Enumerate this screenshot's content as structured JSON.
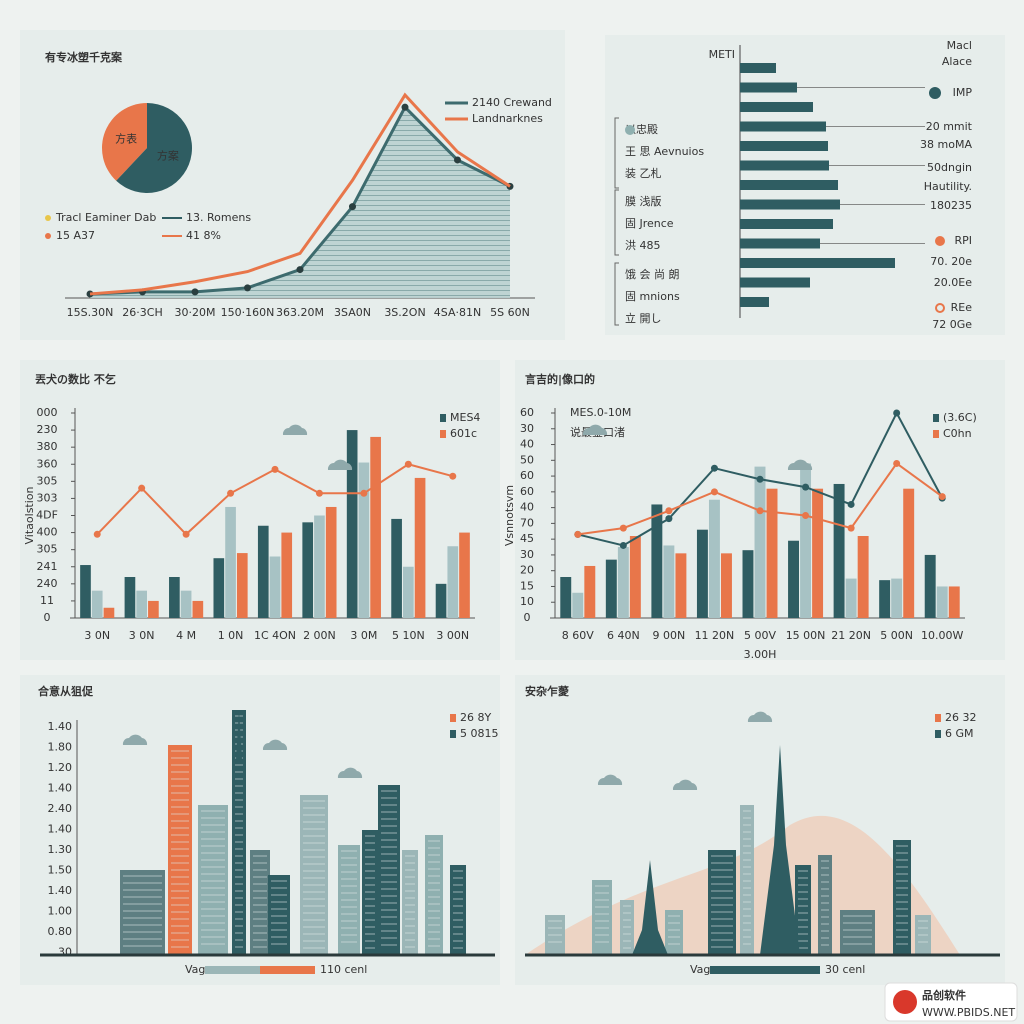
{
  "chart_data": [
    {
      "type": "area",
      "title": "有专冰塑千克案",
      "categories": [
        "15S.30N",
        "26·3CH",
        "30·20M",
        "150·160N",
        "363.20M",
        "3SA0N",
        "3S.2ON",
        "4SA·81N",
        "5S 60N"
      ],
      "ylim": [
        0,
        100
      ],
      "series": [
        {
          "name": "2140 Crewand",
          "color": "#3d6b6e",
          "values": [
            2,
            3,
            3,
            5,
            14,
            45,
            94,
            68,
            55
          ]
        },
        {
          "name": "Landnarknes",
          "color": "#e8764a",
          "values": [
            2,
            4,
            8,
            13,
            22,
            58,
            100,
            72,
            55
          ]
        }
      ]
    },
    {
      "type": "pie",
      "categories": [
        "方表",
        "方案"
      ],
      "values": [
        38,
        62
      ],
      "colors": [
        "#e8764a",
        "#2f5d62"
      ],
      "notes": [
        "Tracl Eaminer Dab",
        "13. Romens",
        "15 A37",
        "41 8%"
      ]
    },
    {
      "type": "barh",
      "title": "METI",
      "color": "#2f5d62",
      "xlim": [
        0,
        160
      ],
      "values": [
        36,
        57,
        73,
        86,
        88,
        89,
        98,
        100,
        93,
        80,
        155,
        70,
        29
      ],
      "right_labels": [
        "Macl",
        "Alace",
        "IMP",
        "20 mmit",
        "38 moMA",
        "50dngin",
        "Hautility.",
        "180235",
        "RPI",
        "70. 20e",
        "20.0Ee",
        "REe",
        "72 0Ge"
      ],
      "left_labels": [
        [
          "以忠殿",
          "王 思 Aevnuios",
          "装 乙札"
        ],
        [
          "膜 浅版",
          "固 Jrence",
          "洪 485"
        ],
        [
          "饿 会 尚 朗",
          "固 mnions",
          "立 開し"
        ]
      ]
    },
    {
      "type": "combo",
      "title": "丟犬の数比 不乞",
      "ylabel": "Vitaolstion",
      "categories": [
        "3 0N",
        "3 0N",
        "4 M",
        "1 0N",
        "1C 4ON",
        "2 00N",
        "3 0M",
        "5 10N",
        "3 00N"
      ],
      "ylim": [
        0,
        12
      ],
      "yticks": [
        0,
        {
          "value": 1,
          "label": "11"
        },
        {
          "value": 2,
          "label": "240"
        },
        {
          "value": 3,
          "label": "241"
        },
        {
          "value": 4,
          "label": "305"
        },
        {
          "value": 5,
          "label": "400"
        },
        {
          "value": 6,
          "label": "4DF"
        },
        {
          "value": 7,
          "label": "303"
        },
        {
          "value": 8,
          "label": "305"
        },
        {
          "value": 9,
          "label": "360"
        },
        {
          "value": 10,
          "label": "380"
        },
        {
          "value": 11,
          "label": "230"
        },
        {
          "value": 12,
          "label": "000"
        }
      ],
      "series": [
        {
          "name": "MES4",
          "kind": "bar",
          "color": "#2f5d62",
          "values": [
            3.1,
            2.4,
            2.4,
            3.5,
            5.4,
            5.6,
            11.0,
            5.8,
            2.0
          ]
        },
        {
          "kind": "bar",
          "color": "#a7c2c4",
          "values": [
            1.6,
            1.6,
            1.6,
            6.5,
            3.6,
            6.0,
            9.1,
            3.0,
            4.2
          ]
        },
        {
          "kind": "bar",
          "color": "#e8764a",
          "values": [
            0.6,
            1.0,
            1.0,
            3.8,
            5.0,
            6.5,
            10.6,
            8.2,
            5.0
          ]
        },
        {
          "name": "601c",
          "kind": "line",
          "color": "#e8764a",
          "values": [
            4.9,
            7.6,
            4.9,
            7.3,
            8.7,
            7.3,
            7.3,
            9.0,
            8.3
          ]
        }
      ]
    },
    {
      "type": "combo",
      "title": "言吉的|像口的",
      "ylabel": "Vsnnotsvm",
      "xlabel": "3.00H",
      "annotations": [
        "MES.0-10M",
        "说最金口渚"
      ],
      "categories": [
        "8 60V",
        "6 40N",
        "9 00N",
        "11 20N",
        "5 00V",
        "15 00N",
        "21 20N",
        "5 00N",
        "10.00W"
      ],
      "ylim": [
        0,
        13
      ],
      "yticks": [
        0,
        {
          "value": 1,
          "label": "10"
        },
        {
          "value": 2,
          "label": "15"
        },
        {
          "value": 3,
          "label": "20"
        },
        {
          "value": 4,
          "label": "30"
        },
        {
          "value": 5,
          "label": "45"
        },
        {
          "value": 6,
          "label": "70"
        },
        {
          "value": 7,
          "label": "40"
        },
        {
          "value": 8,
          "label": "60"
        },
        {
          "value": 9,
          "label": "60"
        },
        {
          "value": 10,
          "label": "50"
        },
        {
          "value": 11,
          "label": "40"
        },
        {
          "value": 12,
          "label": "30"
        },
        {
          "value": 13,
          "label": "60"
        }
      ],
      "series": [
        {
          "kind": "bar",
          "color": "#2f5d62",
          "values": [
            2.6,
            3.7,
            7.2,
            5.6,
            4.3,
            4.9,
            8.5,
            2.4,
            4.0
          ]
        },
        {
          "kind": "bar",
          "color": "#a7c2c4",
          "values": [
            1.6,
            4.5,
            4.6,
            7.5,
            9.6,
            9.8,
            2.5,
            2.5,
            2.0
          ]
        },
        {
          "kind": "bar",
          "color": "#e8764a",
          "values": [
            3.3,
            5.2,
            4.1,
            4.1,
            8.2,
            8.2,
            5.2,
            8.2,
            2.0
          ]
        },
        {
          "name": "(3.6C)",
          "kind": "line",
          "color": "#2f5d62",
          "values": [
            5.3,
            4.6,
            6.3,
            9.5,
            8.8,
            8.3,
            7.2,
            13.0,
            7.6
          ]
        },
        {
          "name": "C0hn",
          "kind": "line",
          "color": "#e8764a",
          "values": [
            5.3,
            5.7,
            6.8,
            8.0,
            6.8,
            6.5,
            5.7,
            9.8,
            7.7
          ]
        }
      ]
    },
    {
      "type": "illustration",
      "title": "合意从狙促",
      "y_labels": [
        "1.40",
        "1.80",
        "1.20",
        "1.40",
        "2.40",
        "1.40",
        "1.30",
        "1.50",
        "1.40",
        "1.00",
        "0.80",
        "30"
      ],
      "legend": [
        "26 8Y",
        "5 0815"
      ],
      "scale_labels": [
        "Vag",
        "110 cenl"
      ]
    },
    {
      "type": "illustration",
      "title": "安杂乍薆",
      "legend": [
        "26 32",
        "6 GM"
      ],
      "scale_labels": [
        "Vag",
        "30 cenl"
      ]
    }
  ],
  "watermark": {
    "name": "品创软件",
    "url": "WWW.PBIDS.NET"
  }
}
